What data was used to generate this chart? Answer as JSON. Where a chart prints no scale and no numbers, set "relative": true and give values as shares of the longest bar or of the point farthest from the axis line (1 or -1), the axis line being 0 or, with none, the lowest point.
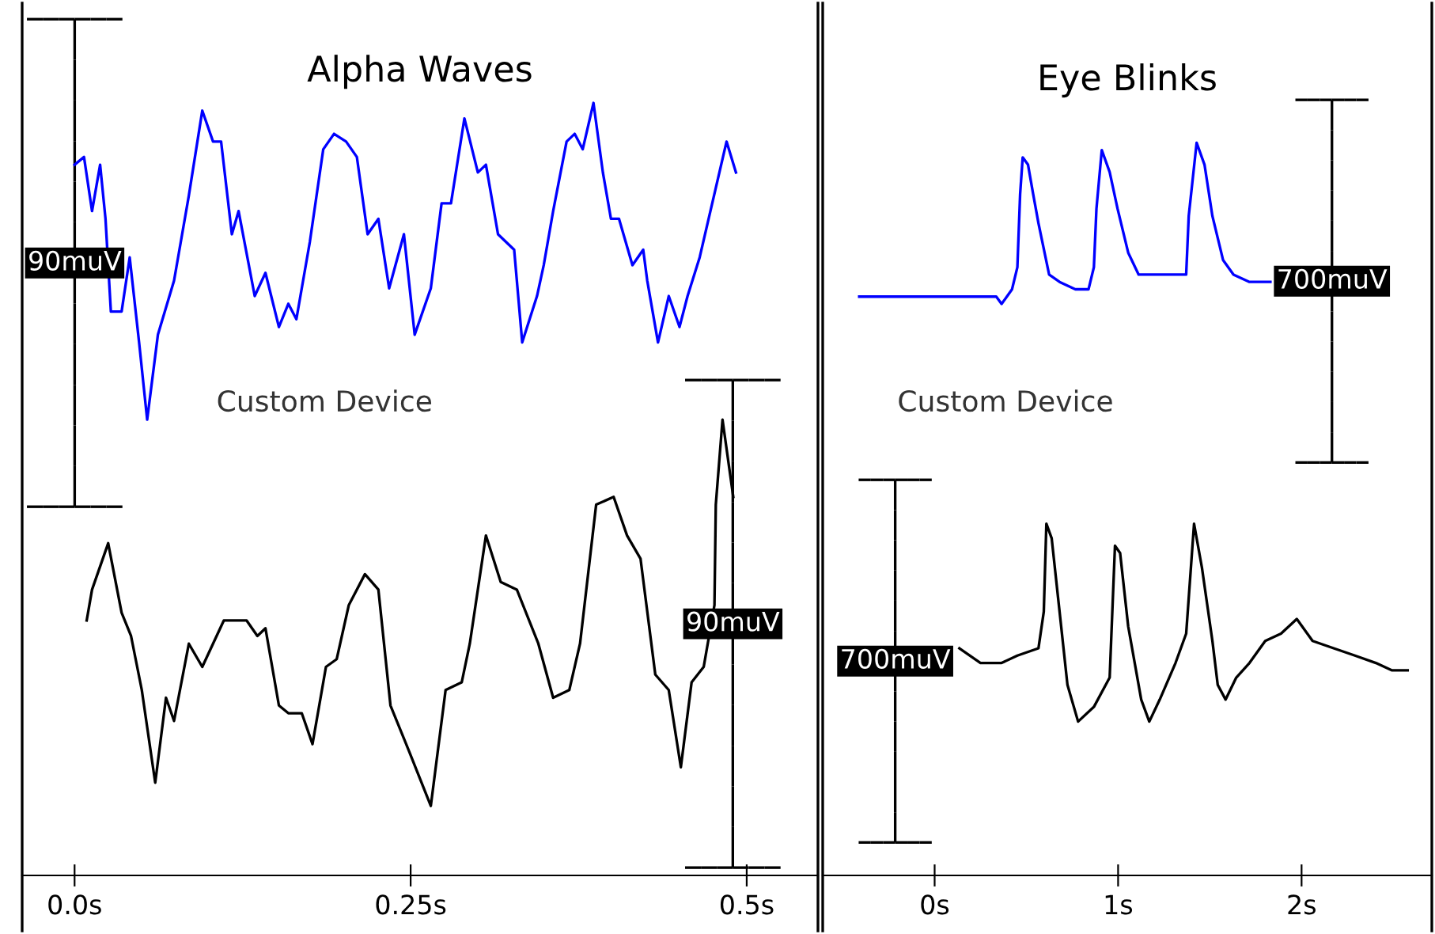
{
  "chart_data": [
    {
      "type": "line",
      "title": "Alpha Waves",
      "relative": true,
      "tick_labels": "x",
      "grid": false,
      "marker": "none",
      "line_style": "solid",
      "xlim": [
        -0.039,
        0.553
      ],
      "xticks": [
        {
          "value": 0,
          "label": "0.0s"
        },
        {
          "value": 0.25,
          "label": "0.25s"
        },
        {
          "value": 0.5,
          "label": "0.5s"
        }
      ],
      "series": [
        {
          "name": "Custom Device",
          "color": "#0000ff",
          "x": [
            0.0,
            0.007,
            0.013,
            0.019,
            0.023,
            0.027,
            0.035,
            0.041,
            0.048,
            0.054,
            0.062,
            0.074,
            0.085,
            0.095,
            0.103,
            0.109,
            0.117,
            0.122,
            0.134,
            0.142,
            0.152,
            0.159,
            0.165,
            0.175,
            0.185,
            0.193,
            0.202,
            0.21,
            0.218,
            0.226,
            0.234,
            0.245,
            0.253,
            0.265,
            0.273,
            0.28,
            0.29,
            0.3,
            0.306,
            0.315,
            0.327,
            0.333,
            0.344,
            0.349,
            0.356,
            0.366,
            0.372,
            0.378,
            0.386,
            0.393,
            0.399,
            0.405,
            0.415,
            0.423,
            0.426,
            0.434,
            0.442,
            0.45,
            0.456,
            0.465,
            0.473,
            0.485,
            0.492
          ],
          "values": [
            0.92,
            0.93,
            0.86,
            0.92,
            0.85,
            0.73,
            0.73,
            0.8,
            0.69,
            0.59,
            0.7,
            0.77,
            0.88,
            0.99,
            0.95,
            0.95,
            0.83,
            0.86,
            0.75,
            0.78,
            0.71,
            0.74,
            0.72,
            0.82,
            0.94,
            0.96,
            0.95,
            0.93,
            0.83,
            0.85,
            0.76,
            0.83,
            0.7,
            0.76,
            0.87,
            0.87,
            0.98,
            0.91,
            0.92,
            0.83,
            0.81,
            0.69,
            0.75,
            0.79,
            0.86,
            0.95,
            0.96,
            0.94,
            1.0,
            0.91,
            0.85,
            0.85,
            0.79,
            0.81,
            0.77,
            0.69,
            0.75,
            0.71,
            0.75,
            0.8,
            0.86,
            0.95,
            0.91
          ]
        },
        {
          "color": "#000000",
          "x": [
            0.009,
            0.013,
            0.025,
            0.035,
            0.042,
            0.05,
            0.06,
            0.068,
            0.074,
            0.085,
            0.095,
            0.103,
            0.111,
            0.12,
            0.128,
            0.136,
            0.142,
            0.152,
            0.159,
            0.169,
            0.177,
            0.187,
            0.195,
            0.204,
            0.216,
            0.226,
            0.235,
            0.249,
            0.265,
            0.276,
            0.288,
            0.294,
            0.306,
            0.317,
            0.329,
            0.345,
            0.356,
            0.368,
            0.376,
            0.388,
            0.401,
            0.411,
            0.421,
            0.432,
            0.442,
            0.451,
            0.459,
            0.468,
            0.476,
            0.477,
            0.482,
            0.49
          ],
          "values": [
            0.33,
            0.37,
            0.43,
            0.34,
            0.31,
            0.24,
            0.12,
            0.23,
            0.2,
            0.3,
            0.27,
            0.3,
            0.33,
            0.33,
            0.33,
            0.31,
            0.32,
            0.22,
            0.21,
            0.21,
            0.17,
            0.27,
            0.28,
            0.35,
            0.39,
            0.37,
            0.22,
            0.16,
            0.09,
            0.24,
            0.25,
            0.3,
            0.44,
            0.38,
            0.37,
            0.3,
            0.23,
            0.24,
            0.3,
            0.48,
            0.49,
            0.44,
            0.41,
            0.26,
            0.24,
            0.14,
            0.25,
            0.27,
            0.35,
            0.48,
            0.59,
            0.49
          ]
        }
      ],
      "annotations": [
        "90muV",
        "90muV"
      ]
    },
    {
      "type": "line",
      "title": "Eye Blinks",
      "relative": true,
      "tick_labels": "x",
      "grid": false,
      "marker": "none",
      "line_style": "solid",
      "xlim": [
        -0.61,
        2.71
      ],
      "xticks": [
        {
          "value": 0,
          "label": "0s"
        },
        {
          "value": 1,
          "label": "1s"
        },
        {
          "value": 2,
          "label": "2s"
        }
      ],
      "series": [
        {
          "name": "Custom Device",
          "color": "#0000ff",
          "x": [
            -0.411,
            -0.325,
            -0.239,
            -0.095,
            0.049,
            0.222,
            0.336,
            0.365,
            0.422,
            0.451,
            0.466,
            0.48,
            0.509,
            0.537,
            0.566,
            0.624,
            0.681,
            0.767,
            0.839,
            0.868,
            0.882,
            0.911,
            0.954,
            0.997,
            1.055,
            1.112,
            1.198,
            1.313,
            1.371,
            1.385,
            1.428,
            1.471,
            1.514,
            1.572,
            1.629,
            1.716,
            1.802,
            1.83
          ],
          "values": [
            0.79,
            0.79,
            0.79,
            0.79,
            0.79,
            0.79,
            0.79,
            0.78,
            0.8,
            0.83,
            0.93,
            0.98,
            0.97,
            0.93,
            0.89,
            0.82,
            0.81,
            0.8,
            0.8,
            0.83,
            0.91,
            0.99,
            0.96,
            0.91,
            0.85,
            0.82,
            0.82,
            0.82,
            0.82,
            0.9,
            1.0,
            0.97,
            0.9,
            0.84,
            0.82,
            0.81,
            0.81,
            0.81
          ]
        },
        {
          "color": "#000000",
          "x": [
            0.135,
            0.25,
            0.365,
            0.451,
            0.566,
            0.595,
            0.609,
            0.638,
            0.681,
            0.724,
            0.782,
            0.868,
            0.954,
            0.983,
            1.011,
            1.055,
            1.126,
            1.17,
            1.227,
            1.313,
            1.371,
            1.414,
            1.457,
            1.514,
            1.543,
            1.586,
            1.644,
            1.716,
            1.802,
            1.888,
            1.974,
            2.06,
            2.175,
            2.291,
            2.405,
            2.491,
            2.578
          ],
          "values": [
            0.31,
            0.29,
            0.29,
            0.3,
            0.31,
            0.36,
            0.48,
            0.46,
            0.36,
            0.26,
            0.21,
            0.23,
            0.27,
            0.45,
            0.44,
            0.34,
            0.24,
            0.21,
            0.24,
            0.29,
            0.33,
            0.48,
            0.42,
            0.32,
            0.26,
            0.24,
            0.27,
            0.29,
            0.32,
            0.33,
            0.35,
            0.32,
            0.31,
            0.3,
            0.29,
            0.28,
            0.28
          ]
        }
      ],
      "annotations": [
        "700muV",
        "700muV"
      ]
    }
  ]
}
